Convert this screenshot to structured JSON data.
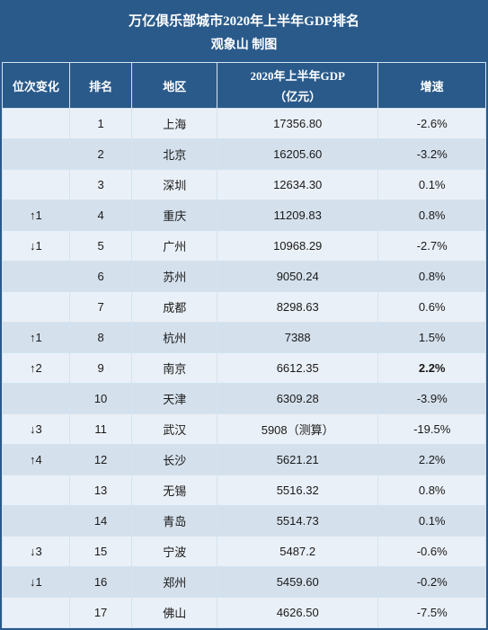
{
  "header": {
    "title": "万亿俱乐部城市2020年上半年GDP排名",
    "subtitle": "观象山  制图"
  },
  "columns": {
    "change": "位次变化",
    "rank": "排名",
    "region": "地区",
    "gdp_l1": "2020年上半年GDP",
    "gdp_l2": "（亿元）",
    "growth": "增速"
  },
  "rows": [
    {
      "change": "",
      "rank": "1",
      "region": "上海",
      "gdp": "17356.80",
      "growth": "-2.6%",
      "bold": false
    },
    {
      "change": "",
      "rank": "2",
      "region": "北京",
      "gdp": "16205.60",
      "growth": "-3.2%",
      "bold": false
    },
    {
      "change": "",
      "rank": "3",
      "region": "深圳",
      "gdp": "12634.30",
      "growth": "0.1%",
      "bold": false
    },
    {
      "change": "↑1",
      "rank": "4",
      "region": "重庆",
      "gdp": "11209.83",
      "growth": "0.8%",
      "bold": false
    },
    {
      "change": "↓1",
      "rank": "5",
      "region": "广州",
      "gdp": "10968.29",
      "growth": "-2.7%",
      "bold": false
    },
    {
      "change": "",
      "rank": "6",
      "region": "苏州",
      "gdp": "9050.24",
      "growth": "0.8%",
      "bold": false
    },
    {
      "change": "",
      "rank": "7",
      "region": "成都",
      "gdp": "8298.63",
      "growth": "0.6%",
      "bold": false
    },
    {
      "change": "↑1",
      "rank": "8",
      "region": "杭州",
      "gdp": "7388",
      "growth": "1.5%",
      "bold": false
    },
    {
      "change": "↑2",
      "rank": "9",
      "region": "南京",
      "gdp": "6612.35",
      "growth": "2.2%",
      "bold": true
    },
    {
      "change": "",
      "rank": "10",
      "region": "天津",
      "gdp": "6309.28",
      "growth": "-3.9%",
      "bold": false
    },
    {
      "change": "↓3",
      "rank": "11",
      "region": "武汉",
      "gdp": "5908（测算）",
      "growth": "-19.5%",
      "bold": false
    },
    {
      "change": "↑4",
      "rank": "12",
      "region": "长沙",
      "gdp": "5621.21",
      "growth": "2.2%",
      "bold": false
    },
    {
      "change": "",
      "rank": "13",
      "region": "无锡",
      "gdp": "5516.32",
      "growth": "0.8%",
      "bold": false
    },
    {
      "change": "",
      "rank": "14",
      "region": "青岛",
      "gdp": "5514.73",
      "growth": "0.1%",
      "bold": false
    },
    {
      "change": "↓3",
      "rank": "15",
      "region": "宁波",
      "gdp": "5487.2",
      "growth": "-0.6%",
      "bold": false
    },
    {
      "change": "↓1",
      "rank": "16",
      "region": "郑州",
      "gdp": "5459.60",
      "growth": "-0.2%",
      "bold": false
    },
    {
      "change": "",
      "rank": "17",
      "region": "佛山",
      "gdp": "4626.50",
      "growth": "-7.5%",
      "bold": false
    }
  ]
}
